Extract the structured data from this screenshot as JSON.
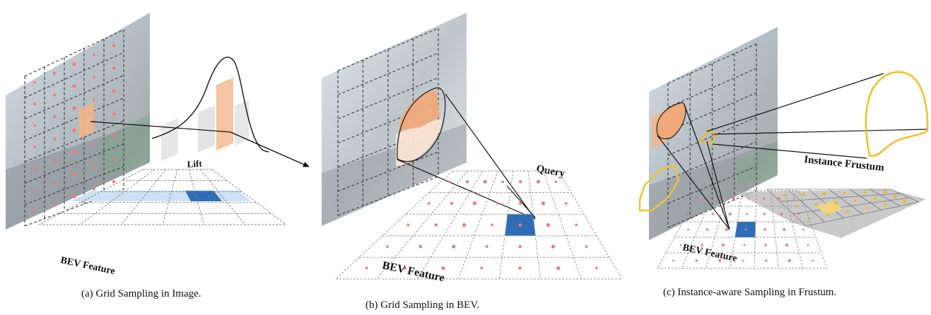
{
  "panel_a": {
    "caption": "(a) Grid Sampling in Image.",
    "lift_label": "Lift",
    "bev_label": "BEV Feature"
  },
  "panel_b": {
    "caption": "(b) Grid Sampling in BEV.",
    "query_label": "Query",
    "bev_label": "BEV Feature"
  },
  "panel_c": {
    "caption": "(c) Instance-aware Sampling in Frustum.",
    "frustum_label": "Instance Frustum",
    "bev_label": "BEV Feature"
  },
  "colors": {
    "sample_point": "#ef7a7a",
    "highlight_orange": "#f3b48a",
    "bev_selected": "#2f6db5",
    "bev_light": "#cfe0f2",
    "instance_outline": "#f2c12e",
    "frustum_plane": "#b4b4b4",
    "grid_line": "#555555"
  }
}
